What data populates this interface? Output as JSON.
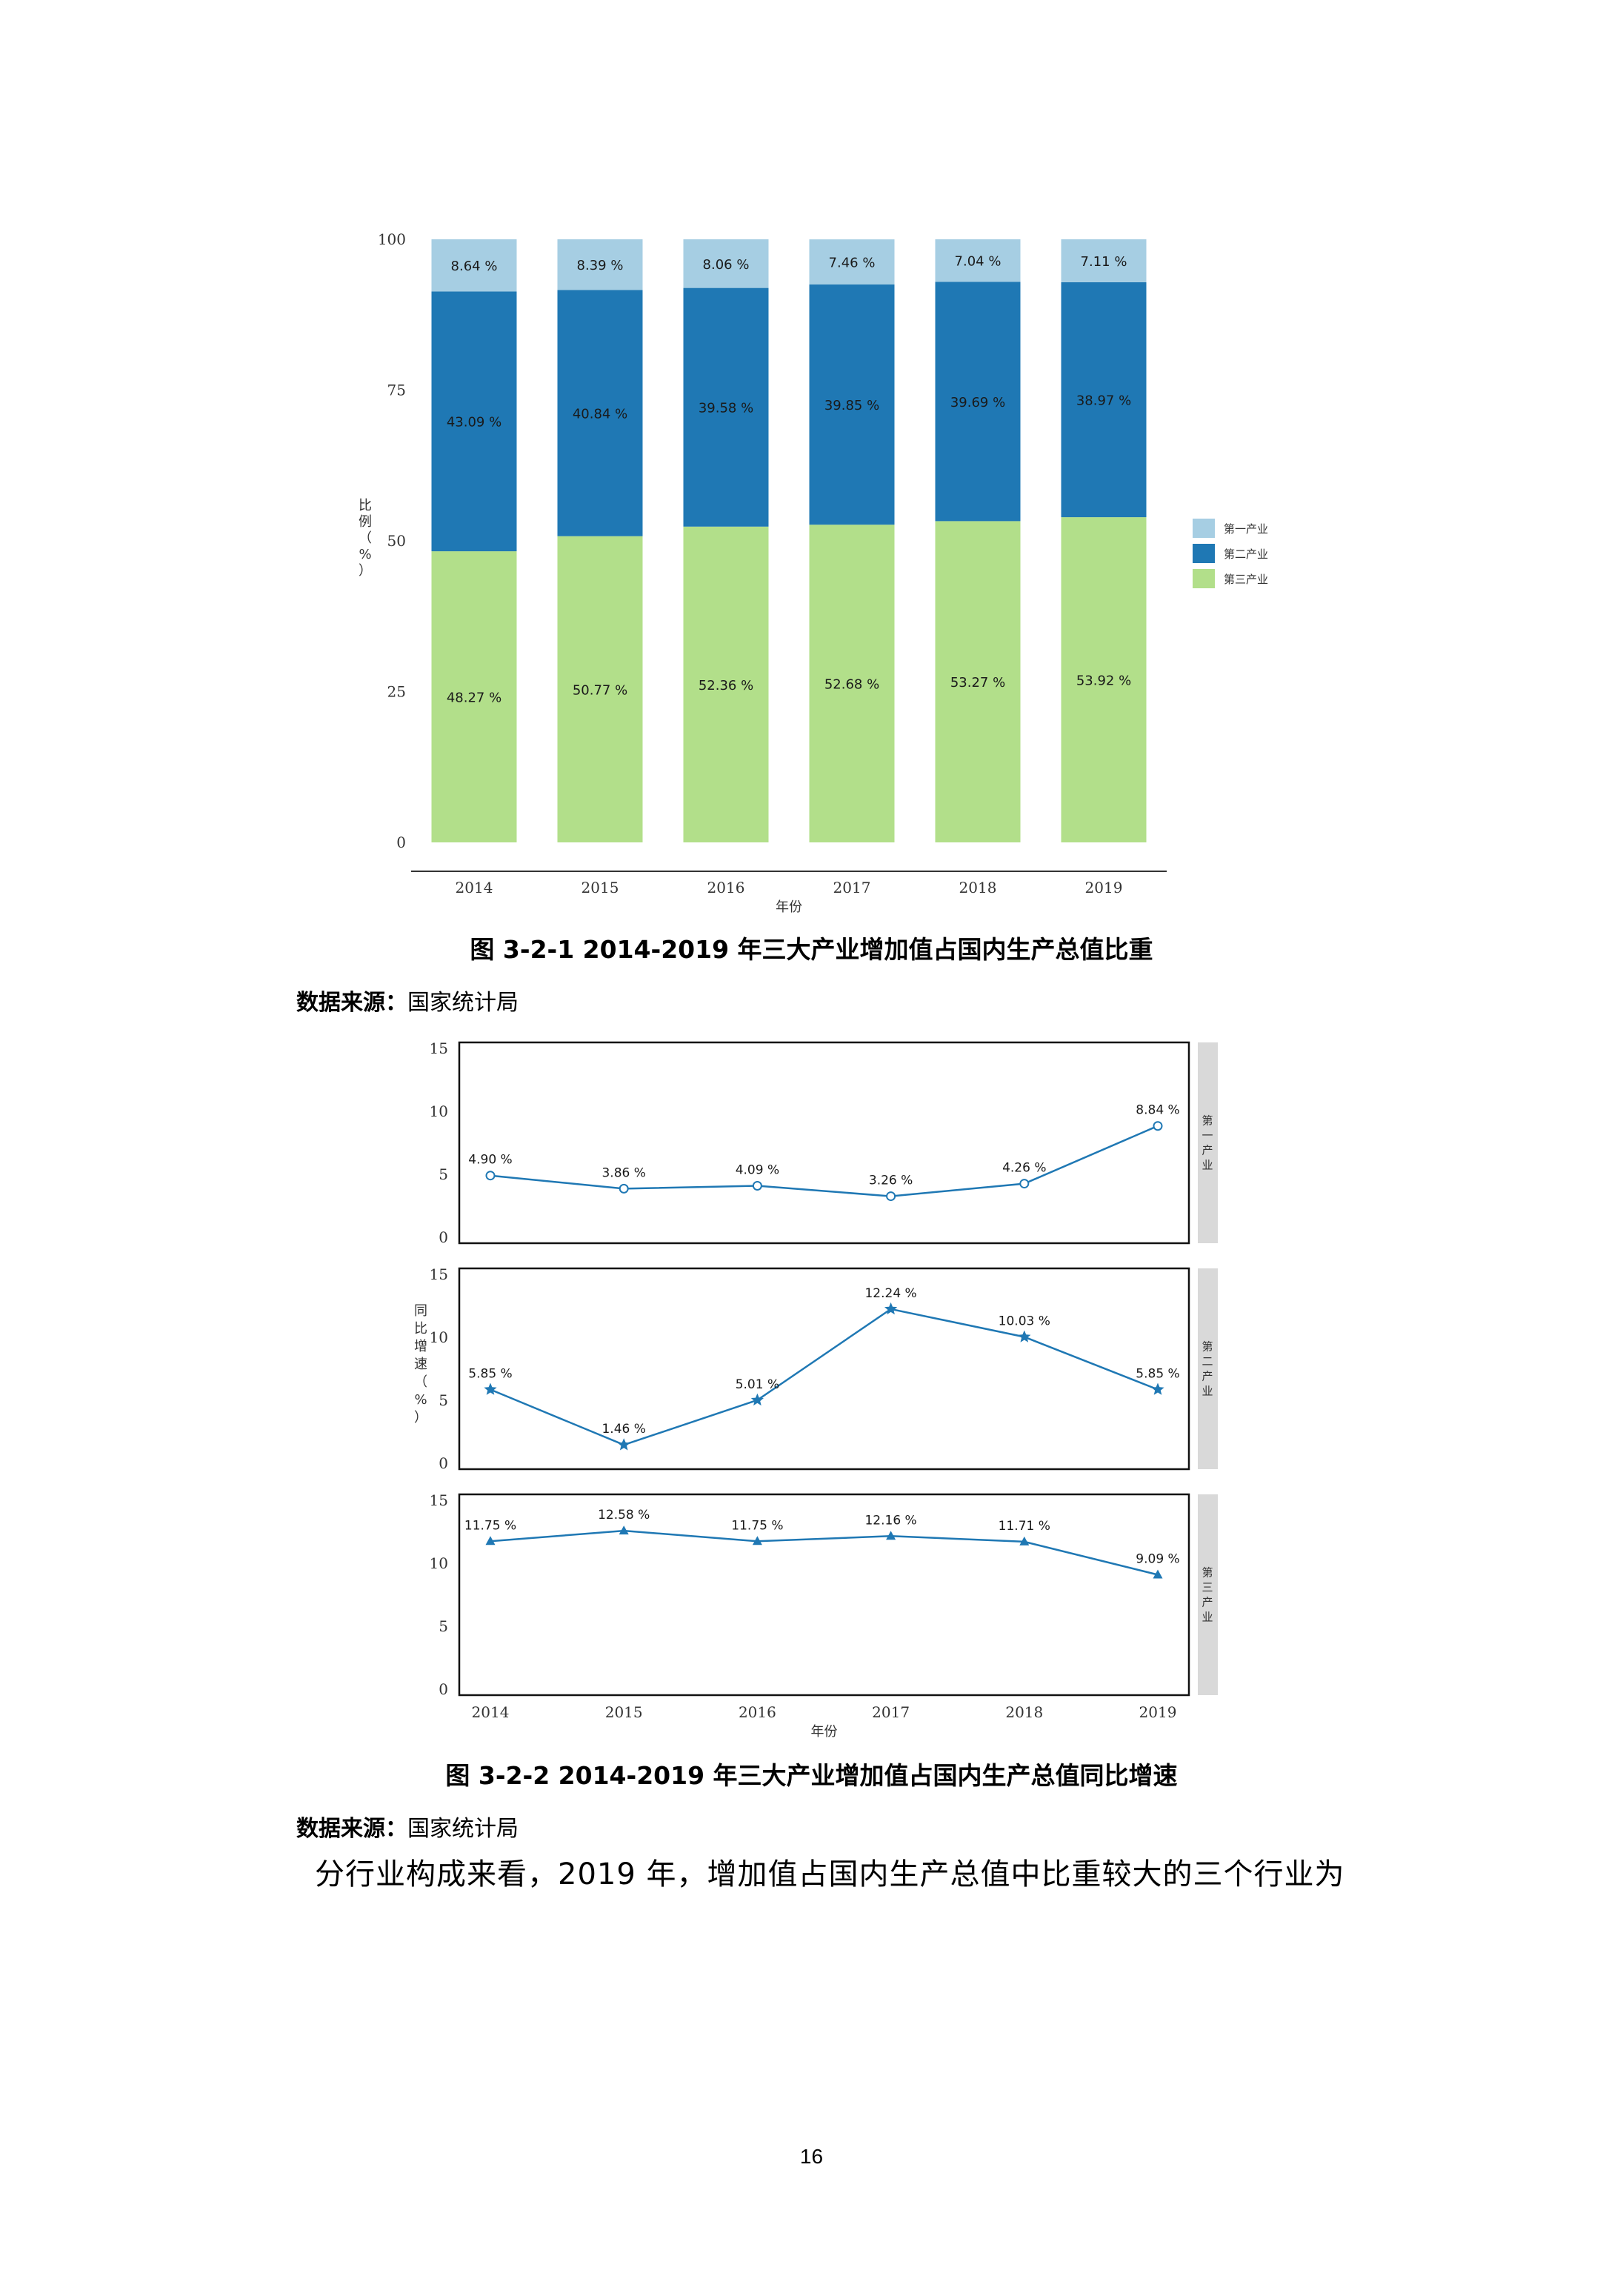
{
  "colors": {
    "primary": "#a6cee3",
    "secondary": "#1f78b4",
    "tertiary": "#b2df8a",
    "line": "#1f78b4",
    "strip": "#d9d9d9"
  },
  "chart_data": [
    {
      "type": "bar",
      "stacked": true,
      "categories": [
        "2014",
        "2015",
        "2016",
        "2017",
        "2018",
        "2019"
      ],
      "series": [
        {
          "name": "第三产业",
          "values": [
            48.27,
            50.77,
            52.36,
            52.68,
            53.27,
            53.92
          ],
          "labels": [
            "48.27 %",
            "50.77 %",
            "52.36 %",
            "52.68 %",
            "53.27 %",
            "53.92 %"
          ]
        },
        {
          "name": "第二产业",
          "values": [
            43.09,
            40.84,
            39.58,
            39.85,
            39.69,
            38.97
          ],
          "labels": [
            "43.09 %",
            "40.84 %",
            "39.58 %",
            "39.85 %",
            "39.69 %",
            "38.97 %"
          ]
        },
        {
          "name": "第一产业",
          "values": [
            8.64,
            8.39,
            8.06,
            7.46,
            7.04,
            7.11
          ],
          "labels": [
            "8.64 %",
            "8.39 %",
            "8.06 %",
            "7.46 %",
            "7.04 %",
            "7.11 %"
          ]
        }
      ],
      "yticks": [
        "0",
        "25",
        "50",
        "75",
        "100"
      ],
      "ylim": [
        0,
        100
      ],
      "ylabel": "比例（%）",
      "xlabel": "年份",
      "legend": [
        "第一产业",
        "第二产业",
        "第三产业"
      ],
      "legend_position": "right"
    },
    {
      "type": "line",
      "facets": true,
      "x": [
        "2014",
        "2015",
        "2016",
        "2017",
        "2018",
        "2019"
      ],
      "series": [
        {
          "name": "第一产业",
          "values": [
            4.9,
            3.86,
            4.09,
            3.26,
            4.26,
            8.84
          ],
          "labels": [
            "4.90 %",
            "3.86 %",
            "4.09 %",
            "3.26 %",
            "4.26 %",
            "8.84 %"
          ],
          "marker": "circle"
        },
        {
          "name": "第二产业",
          "values": [
            5.85,
            1.46,
            5.01,
            12.24,
            10.03,
            5.85
          ],
          "labels": [
            "5.85 %",
            "1.46 %",
            "5.01 %",
            "12.24 %",
            "10.03 %",
            "5.85 %"
          ],
          "marker": "star"
        },
        {
          "name": "第三产业",
          "values": [
            11.75,
            12.58,
            11.75,
            12.16,
            11.71,
            9.09
          ],
          "labels": [
            "11.75 %",
            "12.58 %",
            "11.75 %",
            "12.16 %",
            "11.71 %",
            "9.09 %"
          ],
          "marker": "triangle"
        }
      ],
      "yticks": [
        "0",
        "5",
        "10",
        "15"
      ],
      "ylim": [
        0,
        15
      ],
      "ylabel": "同比增速（%）",
      "xlabel": "年份"
    }
  ],
  "captions": {
    "fig1": "图 3-2-1 2014-2019 年三大产业增加值占国内生产总值比重",
    "fig2": "图 3-2-2 2014-2019 年三大产业增加值占国内生产总值同比增速"
  },
  "source": {
    "label": "数据来源：",
    "value": "国家统计局"
  },
  "body_text": "分行业构成来看，2019 年，增加值占国内生产总值中比重较大的三个行业为",
  "page_number": "16"
}
